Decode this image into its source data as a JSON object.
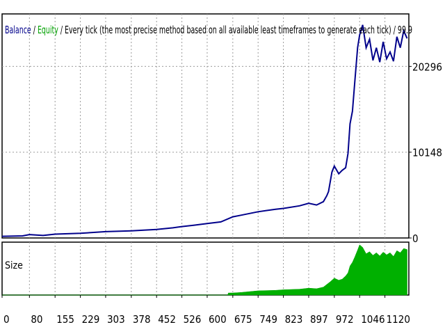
{
  "header": {
    "balance": "Balance",
    "sep1": " / ",
    "equity": "Equity",
    "rest": " / Every tick (the most precise method based on all available least timeframes to generate each tick) / 99.9",
    "colors": {
      "balance": "#00008b",
      "equity": "#00a000",
      "text": "#000000"
    }
  },
  "chart_data": [
    {
      "type": "line",
      "name": "balance-equity",
      "title": "",
      "x_range": [
        0,
        1190
      ],
      "ylim": [
        0,
        26500
      ],
      "y_ticks": [
        {
          "label": "20296",
          "value": 20296
        },
        {
          "label": "10148",
          "value": 10148
        },
        {
          "label": "0",
          "value": 0
        }
      ],
      "grid": true,
      "line_color": "#00008b",
      "series": [
        {
          "name": "Balance",
          "x": [
            0,
            60,
            80,
            120,
            155,
            229,
            303,
            378,
            452,
            500,
            526,
            560,
            600,
            640,
            675,
            700,
            749,
            800,
            823,
            870,
            897,
            920,
            940,
            950,
            955,
            965,
            972,
            985,
            995,
            1005,
            1012,
            1018,
            1025,
            1032,
            1040,
            1046,
            1055,
            1065,
            1075,
            1085,
            1095,
            1105,
            1115,
            1125,
            1135,
            1145,
            1155,
            1165,
            1175,
            1185
          ],
          "values": [
            200,
            250,
            400,
            300,
            450,
            550,
            750,
            850,
            1000,
            1200,
            1350,
            1500,
            1700,
            1900,
            2500,
            2700,
            3100,
            3400,
            3500,
            3800,
            4100,
            3900,
            4300,
            5000,
            5500,
            7800,
            8500,
            7600,
            8000,
            8300,
            10000,
            13500,
            15000,
            18500,
            22500,
            24000,
            25200,
            22500,
            23500,
            21000,
            22500,
            20800,
            23200,
            21200,
            22000,
            20900,
            23800,
            22500,
            24500,
            23600
          ]
        }
      ]
    },
    {
      "type": "area",
      "name": "size",
      "title": "Size",
      "x_range": [
        0,
        1190
      ],
      "ylim": [
        0,
        1
      ],
      "fill_color": "#00b000",
      "series": [
        {
          "name": "Size",
          "x": [
            0,
            660,
            662,
            675,
            700,
            749,
            800,
            823,
            870,
            897,
            920,
            940,
            950,
            960,
            972,
            985,
            995,
            1005,
            1012,
            1018,
            1025,
            1032,
            1040,
            1046,
            1055,
            1065,
            1075,
            1085,
            1095,
            1105,
            1115,
            1125,
            1135,
            1145,
            1155,
            1165,
            1175,
            1185
          ],
          "values": [
            0,
            0,
            0.04,
            0.04,
            0.05,
            0.08,
            0.09,
            0.1,
            0.11,
            0.13,
            0.12,
            0.15,
            0.2,
            0.25,
            0.32,
            0.28,
            0.3,
            0.36,
            0.42,
            0.55,
            0.62,
            0.72,
            0.85,
            0.95,
            0.9,
            0.78,
            0.82,
            0.75,
            0.8,
            0.74,
            0.81,
            0.76,
            0.8,
            0.73,
            0.84,
            0.8,
            0.88,
            0.86
          ]
        }
      ]
    }
  ],
  "x_axis": {
    "ticks": [
      {
        "label": "0",
        "value": 0
      },
      {
        "label": "80",
        "value": 80
      },
      {
        "label": "155",
        "value": 155
      },
      {
        "label": "229",
        "value": 229
      },
      {
        "label": "303",
        "value": 303
      },
      {
        "label": "378",
        "value": 378
      },
      {
        "label": "452",
        "value": 452
      },
      {
        "label": "526",
        "value": 526
      },
      {
        "label": "600",
        "value": 600
      },
      {
        "label": "675",
        "value": 675
      },
      {
        "label": "749",
        "value": 749
      },
      {
        "label": "823",
        "value": 823
      },
      {
        "label": "897",
        "value": 897
      },
      {
        "label": "972",
        "value": 972
      },
      {
        "label": "1046",
        "value": 1046
      },
      {
        "label": "1120",
        "value": 1120
      }
    ]
  }
}
